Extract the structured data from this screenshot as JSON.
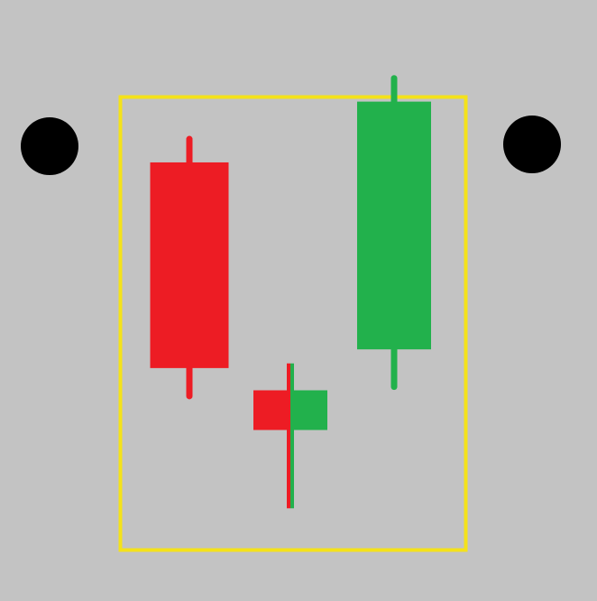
{
  "colors": {
    "background": "#c3c3c3",
    "frame": "#f4e21a",
    "bullish": "#22b14c",
    "bearish": "#ed1c24",
    "markers": "#000000"
  },
  "chart_data": {
    "type": "candlestick",
    "pattern_frame": true,
    "side_markers": [
      "left",
      "right"
    ],
    "candles": [
      {
        "index": 1,
        "direction": "bearish",
        "open": 78,
        "close": 34,
        "high": 83,
        "low": 28
      },
      {
        "index": 2,
        "direction": "doji",
        "open": 25,
        "close": 25,
        "open_half_color": "bearish",
        "close_half_color": "bullish",
        "high": 35,
        "low": 4
      },
      {
        "index": 3,
        "direction": "bullish",
        "open": 38,
        "close": 91,
        "high": 96,
        "low": 30
      }
    ],
    "ylim": [
      0,
      105
    ],
    "grid": false,
    "axes_visible": false
  }
}
